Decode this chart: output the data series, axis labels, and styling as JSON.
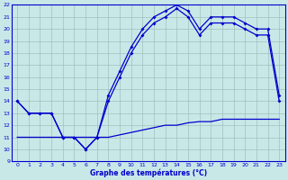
{
  "title": "Graphe des températures (°C)",
  "bg_color": "#c8e8e8",
  "grid_color": "#a0c0c0",
  "line_color": "#0000cc",
  "xlim": [
    -0.5,
    23.5
  ],
  "ylim": [
    9,
    22
  ],
  "xticks": [
    0,
    1,
    2,
    3,
    4,
    5,
    6,
    7,
    8,
    9,
    10,
    11,
    12,
    13,
    14,
    15,
    16,
    17,
    18,
    19,
    20,
    21,
    22,
    23
  ],
  "yticks": [
    9,
    10,
    11,
    12,
    13,
    14,
    15,
    16,
    17,
    18,
    19,
    20,
    21,
    22
  ],
  "line_min_x": [
    0,
    1,
    2,
    3,
    4,
    5,
    6,
    7,
    8,
    9,
    10,
    11,
    12,
    13,
    14,
    15,
    16,
    17,
    18,
    19,
    20,
    21,
    22,
    23
  ],
  "line_min_y": [
    11,
    11,
    11,
    11,
    11,
    11,
    11,
    11,
    11,
    11.2,
    11.4,
    11.6,
    11.8,
    12,
    12,
    12.2,
    12.3,
    12.3,
    12.5,
    12.5,
    12.5,
    12.5,
    12.5,
    12.5
  ],
  "line_a_x": [
    0,
    1,
    2,
    3,
    4,
    5,
    6,
    7,
    8,
    9,
    10,
    11,
    12,
    13,
    14,
    15,
    16,
    17,
    18,
    19,
    20,
    21,
    22,
    23
  ],
  "line_a_y": [
    14,
    13,
    13,
    13,
    11,
    11,
    10,
    11,
    14.5,
    16.5,
    18.5,
    20,
    21,
    21.5,
    22,
    21.5,
    20,
    21,
    21,
    21,
    20.5,
    20,
    20,
    14.5
  ],
  "line_b_x": [
    0,
    1,
    2,
    3,
    4,
    5,
    6,
    7,
    8,
    9,
    10,
    11,
    12,
    13,
    14,
    15,
    16,
    17,
    18,
    19,
    20,
    21,
    22,
    23
  ],
  "line_b_y": [
    14,
    13,
    13,
    13,
    11,
    11,
    10,
    11,
    14,
    16,
    18,
    19.5,
    20.5,
    21,
    21.7,
    21,
    19.5,
    20.5,
    20.5,
    20.5,
    20,
    19.5,
    19.5,
    14
  ]
}
